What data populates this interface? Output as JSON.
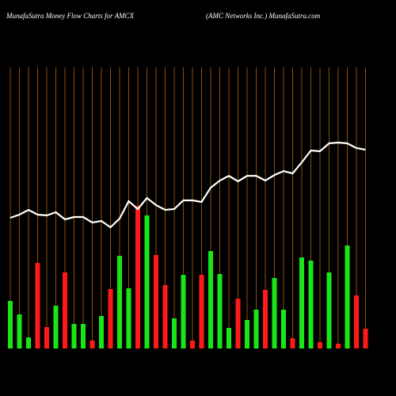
{
  "chart_data": {
    "type": "bar",
    "title": "MunafaSutra  Money Flow  Charts for AMCX",
    "subtitle": "(AMC Networks Inc.) MunafaSutra.com",
    "categories": [
      null,
      null,
      null,
      null,
      null,
      null,
      null,
      null,
      null,
      null,
      null,
      null,
      null,
      null,
      null,
      null,
      null,
      null,
      null,
      null,
      null,
      null,
      null,
      null,
      null,
      null,
      null,
      null,
      null,
      null,
      null,
      null,
      null,
      null,
      null,
      null,
      null,
      null,
      null,
      null
    ],
    "ylim": [
      0,
      355
    ],
    "series": [
      {
        "type": "bar",
        "values": [
          60,
          43,
          14,
          108,
          27,
          54,
          96,
          31,
          31,
          10,
          41,
          75,
          117,
          76,
          180,
          168,
          118,
          80,
          38,
          93,
          10,
          93,
          123,
          94,
          26,
          63,
          36,
          49,
          74,
          89,
          49,
          13,
          115,
          111,
          8,
          96,
          6,
          130,
          67,
          25
        ],
        "colors": [
          "#19e619",
          "#19e619",
          "#19e619",
          "#ff1a1a",
          "#ff1a1a",
          "#19e619",
          "#ff1a1a",
          "#19e619",
          "#19e619",
          "#ff1a1a",
          "#19e619",
          "#ff1a1a",
          "#19e619",
          "#19e619",
          "#ff1a1a",
          "#19e619",
          "#ff1a1a",
          "#ff1a1a",
          "#19e619",
          "#19e619",
          "#ff1a1a",
          "#ff1a1a",
          "#19e619",
          "#19e619",
          "#19e619",
          "#ff1a1a",
          "#19e619",
          "#19e619",
          "#ff1a1a",
          "#19e619",
          "#19e619",
          "#ff1a1a",
          "#19e619",
          "#19e619",
          "#ff1a1a",
          "#19e619",
          "#ff1a1a",
          "#19e619",
          "#ff1a1a",
          "#ff1a1a"
        ]
      },
      {
        "type": "line",
        "color": "#ffffff",
        "values": [
          165,
          169,
          175,
          169,
          168,
          172,
          163,
          166,
          166,
          159,
          161,
          153,
          164,
          186,
          176,
          190,
          181,
          175,
          176,
          187,
          187,
          185,
          203,
          212,
          218,
          211,
          218,
          218,
          212,
          219,
          224,
          221,
          235,
          250,
          249,
          259,
          260,
          259,
          253,
          251
        ]
      }
    ]
  }
}
